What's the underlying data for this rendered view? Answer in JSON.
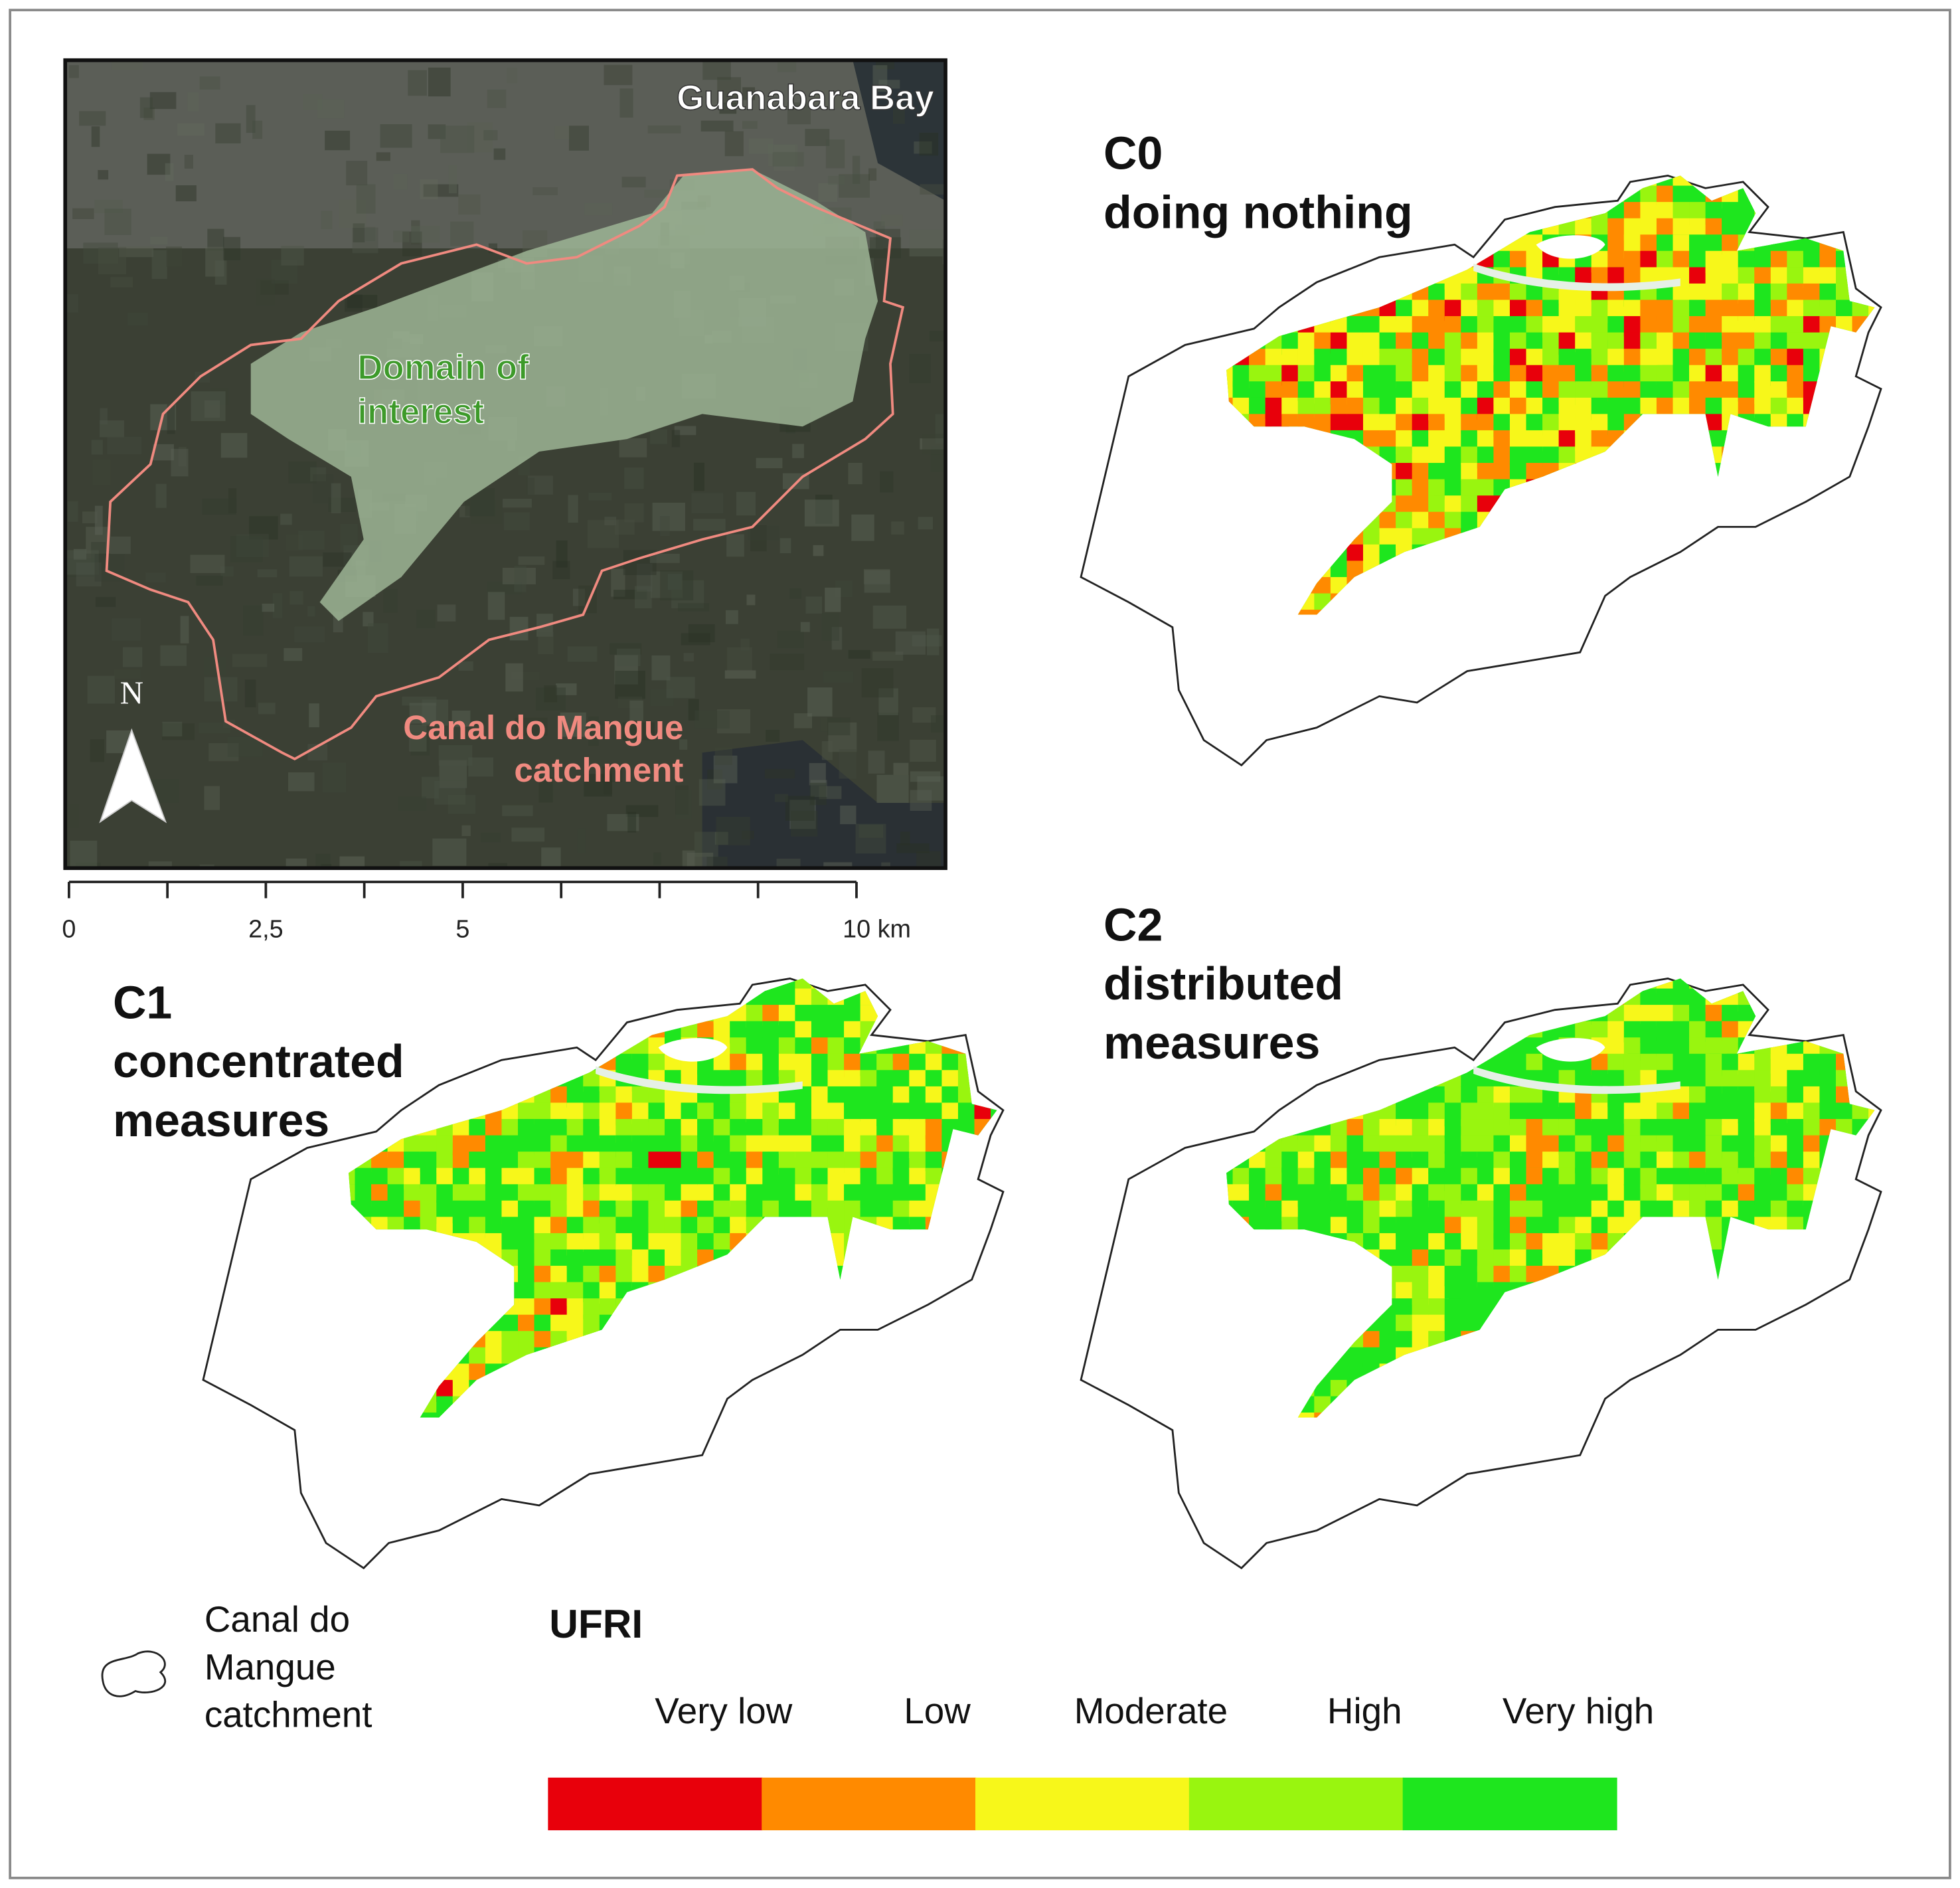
{
  "panel_a": {
    "bay_label": "Guanabara Bay",
    "domain_label": [
      "Domain of",
      "interest"
    ],
    "catchment_label": [
      "Canal do Mangue",
      "catchment"
    ],
    "north_label": "N",
    "scale_bar": [
      "0",
      "2,5",
      "5",
      "10 km"
    ]
  },
  "scenarios": [
    {
      "code": "C0",
      "description": [
        "doing nothing"
      ]
    },
    {
      "code": "C1",
      "description": [
        "concentrated",
        "measures"
      ]
    },
    {
      "code": "C2",
      "description": [
        "distributed",
        "measures"
      ]
    }
  ],
  "legend": {
    "catchment_label": [
      "Canal do",
      "Mangue",
      "catchment"
    ],
    "title": "UFRI",
    "classes": [
      {
        "label": "Very low",
        "color": "#e8000b"
      },
      {
        "label": "Low",
        "color": "#ff8a00"
      },
      {
        "label": "Moderate",
        "color": "#f7f71a"
      },
      {
        "label": "High",
        "color": "#99f50f"
      },
      {
        "label": "Very high",
        "color": "#1ee61e"
      }
    ]
  }
}
